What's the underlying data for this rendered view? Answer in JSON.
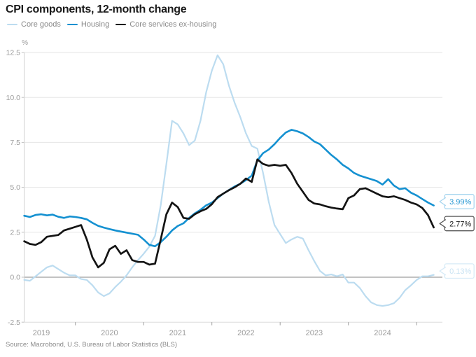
{
  "title": "CPI components, 12-month change",
  "source": "Source: Macrobond, U.S. Bureau of Labor Statistics (BLS)",
  "chart_data": {
    "type": "line",
    "title": "CPI components, 12-month change",
    "unit_label": "%",
    "start_month": "2019-04",
    "end_month": "2025-04",
    "frequency": "monthly",
    "grid": true,
    "legend_position": "top-left",
    "x_axis": {
      "year_labels": [
        "2019",
        "2020",
        "2021",
        "2022",
        "2023",
        "2024"
      ]
    },
    "y_axis": {
      "unit": "%",
      "ylim": [
        -2.5,
        12.5
      ],
      "ticks": [
        {
          "v": 12.5,
          "label": "12.5"
        },
        {
          "v": 10.0,
          "label": "10.0"
        },
        {
          "v": 7.5,
          "label": "7.5"
        },
        {
          "v": 5.0,
          "label": "5.0"
        },
        {
          "v": 2.5,
          "label": "2.5"
        },
        {
          "v": 0.0,
          "label": "0.0"
        },
        {
          "v": -2.5,
          "label": "-2.5"
        }
      ]
    },
    "series": [
      {
        "id": "core-goods",
        "name": "Core goods",
        "color": "#bcdcf0",
        "values": [
          -0.15,
          -0.2,
          0.05,
          0.3,
          0.55,
          0.65,
          0.45,
          0.25,
          0.1,
          0.1,
          -0.1,
          -0.15,
          -0.45,
          -0.85,
          -1.05,
          -0.9,
          -0.55,
          -0.25,
          0.1,
          0.55,
          0.95,
          1.3,
          1.7,
          2.3,
          4.0,
          6.3,
          8.7,
          8.5,
          8.0,
          7.35,
          7.6,
          8.7,
          10.3,
          11.5,
          12.35,
          11.85,
          10.65,
          9.7,
          8.9,
          8.0,
          7.3,
          7.15,
          5.8,
          4.2,
          2.9,
          2.4,
          1.9,
          2.1,
          2.25,
          2.15,
          1.5,
          0.9,
          0.35,
          0.1,
          0.15,
          0.05,
          0.15,
          -0.3,
          -0.3,
          -0.6,
          -1.05,
          -1.4,
          -1.55,
          -1.6,
          -1.55,
          -1.45,
          -1.15,
          -0.72,
          -0.45,
          -0.15,
          0.05,
          0.05,
          0.13
        ]
      },
      {
        "id": "housing",
        "name": "Housing",
        "color": "#1591d1",
        "values": [
          3.42,
          3.35,
          3.46,
          3.5,
          3.44,
          3.48,
          3.36,
          3.3,
          3.38,
          3.35,
          3.3,
          3.22,
          3.02,
          2.86,
          2.76,
          2.68,
          2.6,
          2.54,
          2.48,
          2.42,
          2.36,
          2.1,
          1.8,
          1.72,
          1.95,
          2.25,
          2.6,
          2.85,
          3.0,
          3.3,
          3.55,
          3.75,
          4.0,
          4.15,
          4.4,
          4.65,
          4.85,
          5.05,
          5.2,
          5.4,
          5.65,
          6.5,
          6.9,
          7.1,
          7.4,
          7.75,
          8.05,
          8.2,
          8.12,
          8.0,
          7.8,
          7.55,
          7.4,
          7.1,
          6.8,
          6.55,
          6.25,
          6.05,
          5.8,
          5.65,
          5.55,
          5.45,
          5.35,
          5.15,
          5.45,
          5.1,
          4.9,
          4.95,
          4.7,
          4.55,
          4.35,
          4.15,
          3.99
        ]
      },
      {
        "id": "core-services",
        "name": "Core services ex-housing",
        "color": "#141414",
        "values": [
          2.0,
          1.85,
          1.8,
          1.95,
          2.25,
          2.3,
          2.35,
          2.6,
          2.7,
          2.8,
          2.9,
          2.1,
          1.1,
          0.55,
          0.8,
          1.55,
          1.75,
          1.3,
          1.5,
          0.95,
          0.85,
          0.85,
          0.7,
          0.75,
          2.1,
          3.5,
          4.15,
          3.9,
          3.3,
          3.25,
          3.5,
          3.67,
          3.8,
          4.06,
          4.45,
          4.65,
          4.84,
          5.0,
          5.2,
          5.49,
          5.3,
          6.55,
          6.3,
          6.2,
          6.25,
          6.2,
          6.25,
          5.8,
          5.2,
          4.75,
          4.3,
          4.1,
          4.05,
          3.95,
          3.87,
          3.82,
          3.78,
          4.4,
          4.55,
          4.9,
          4.95,
          4.8,
          4.65,
          4.5,
          4.45,
          4.5,
          4.4,
          4.3,
          4.15,
          4.05,
          3.85,
          3.45,
          2.77
        ]
      }
    ],
    "callouts": [
      {
        "series": "housing",
        "label": "3.99%",
        "value": 3.99,
        "text_color": "#2597d3",
        "border_color": "#a9d6ef"
      },
      {
        "series": "core-services",
        "label": "2.77%",
        "value": 2.77,
        "text_color": "#1a1a1a",
        "border_color": "#595959"
      },
      {
        "series": "core-goods",
        "label": "0.13%",
        "value": 0.13,
        "text_color": "#c9e3f3",
        "border_color": "#d7ebf7"
      }
    ],
    "colors": {
      "grid": "#e6e6e6",
      "zero_line": "#9e9e9e",
      "bottom_frame": "#dcdcdc",
      "y_axis_line": "#d2d2d2",
      "tick": "#9e9e9e",
      "axis_text": "#9b9b9b"
    }
  }
}
